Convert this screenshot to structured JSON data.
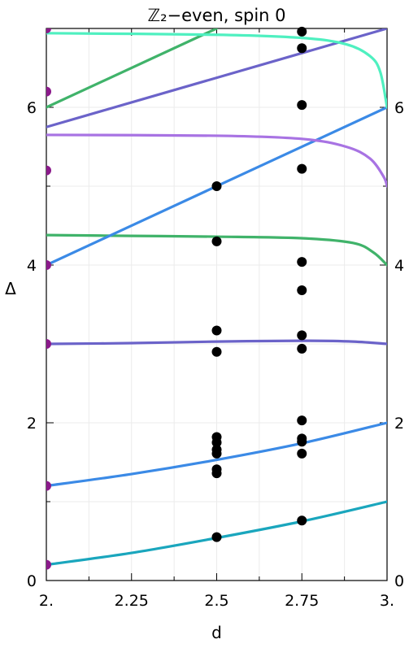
{
  "chart_data": {
    "type": "line",
    "title": "ℤ₂−even, spin 0",
    "xlabel": "d",
    "ylabel": "Δ",
    "xlim": [
      2.0,
      3.0
    ],
    "ylim": [
      0,
      7
    ],
    "x_ticks": [
      {
        "value": 2.0,
        "label": "2."
      },
      {
        "value": 2.25,
        "label": "2.25"
      },
      {
        "value": 2.5,
        "label": "2.5"
      },
      {
        "value": 2.75,
        "label": "2.75"
      },
      {
        "value": 3.0,
        "label": "3."
      }
    ],
    "y_ticks": [
      {
        "value": 0,
        "label": "0"
      },
      {
        "value": 2,
        "label": "2"
      },
      {
        "value": 4,
        "label": "4"
      },
      {
        "value": 6,
        "label": "6"
      }
    ],
    "grid": true,
    "series": [
      {
        "color": "#1aa6bd",
        "x": [
          2.0,
          2.25,
          2.5,
          2.75,
          3.0
        ],
        "y": [
          0.2,
          0.35,
          0.54,
          0.75,
          1.0
        ]
      },
      {
        "color": "#3b8ae6",
        "x": [
          2.0,
          2.25,
          2.5,
          2.75,
          3.0
        ],
        "y": [
          1.2,
          1.35,
          1.53,
          1.74,
          2.0
        ]
      },
      {
        "color": "#6b63c9",
        "x": [
          2.0,
          2.25,
          2.5,
          2.75,
          2.9,
          3.0
        ],
        "y": [
          3.0,
          3.01,
          3.03,
          3.04,
          3.03,
          3.0
        ]
      },
      {
        "color": "#40b36a",
        "x": [
          2.0,
          2.25,
          2.5,
          2.75,
          2.9,
          2.96,
          3.0
        ],
        "y": [
          4.38,
          4.37,
          4.36,
          4.34,
          4.28,
          4.16,
          4.0
        ]
      },
      {
        "color": "#3b8ae6",
        "x": [
          2.0,
          3.0
        ],
        "y": [
          4.0,
          6.0
        ]
      },
      {
        "color": "#a873e3",
        "x": [
          2.0,
          2.5,
          2.75,
          2.88,
          2.95,
          2.99,
          3.0
        ],
        "y": [
          5.65,
          5.64,
          5.6,
          5.5,
          5.35,
          5.12,
          5.0
        ]
      },
      {
        "color": "#6b63c9",
        "x": [
          2.0,
          3.0
        ],
        "y": [
          5.75,
          7.0
        ]
      },
      {
        "color": "#40b36a",
        "x": [
          2.0,
          2.5
        ],
        "y": [
          6.0,
          7.0
        ]
      },
      {
        "color": "#4ff0c0",
        "x": [
          2.0,
          2.5,
          2.75,
          2.88,
          2.95,
          2.98,
          3.0
        ],
        "y": [
          6.94,
          6.92,
          6.88,
          6.8,
          6.65,
          6.45,
          6.0
        ]
      }
    ],
    "points_black": [
      {
        "x": 2.5,
        "y": 0.55
      },
      {
        "x": 2.5,
        "y": 1.36
      },
      {
        "x": 2.5,
        "y": 1.41
      },
      {
        "x": 2.5,
        "y": 1.61
      },
      {
        "x": 2.5,
        "y": 1.66
      },
      {
        "x": 2.5,
        "y": 1.75
      },
      {
        "x": 2.5,
        "y": 1.82
      },
      {
        "x": 2.5,
        "y": 2.9
      },
      {
        "x": 2.5,
        "y": 3.17
      },
      {
        "x": 2.5,
        "y": 4.3
      },
      {
        "x": 2.5,
        "y": 5.0
      },
      {
        "x": 2.75,
        "y": 0.76
      },
      {
        "x": 2.75,
        "y": 1.61
      },
      {
        "x": 2.75,
        "y": 1.76
      },
      {
        "x": 2.75,
        "y": 1.8
      },
      {
        "x": 2.75,
        "y": 2.03
      },
      {
        "x": 2.75,
        "y": 2.94
      },
      {
        "x": 2.75,
        "y": 3.11
      },
      {
        "x": 2.75,
        "y": 3.68
      },
      {
        "x": 2.75,
        "y": 4.04
      },
      {
        "x": 2.75,
        "y": 5.22
      },
      {
        "x": 2.75,
        "y": 6.03
      },
      {
        "x": 2.75,
        "y": 6.75
      },
      {
        "x": 2.75,
        "y": 6.96
      }
    ],
    "points_edge": [
      {
        "x": 2.0,
        "y": 0.2
      },
      {
        "x": 2.0,
        "y": 1.2
      },
      {
        "x": 2.0,
        "y": 3.0
      },
      {
        "x": 2.0,
        "y": 4.0
      },
      {
        "x": 2.0,
        "y": 5.2
      },
      {
        "x": 2.0,
        "y": 6.2
      },
      {
        "x": 2.0,
        "y": 7.0
      }
    ],
    "edge_point_color": "#8b1a8b",
    "black_point_color": "#000000"
  }
}
